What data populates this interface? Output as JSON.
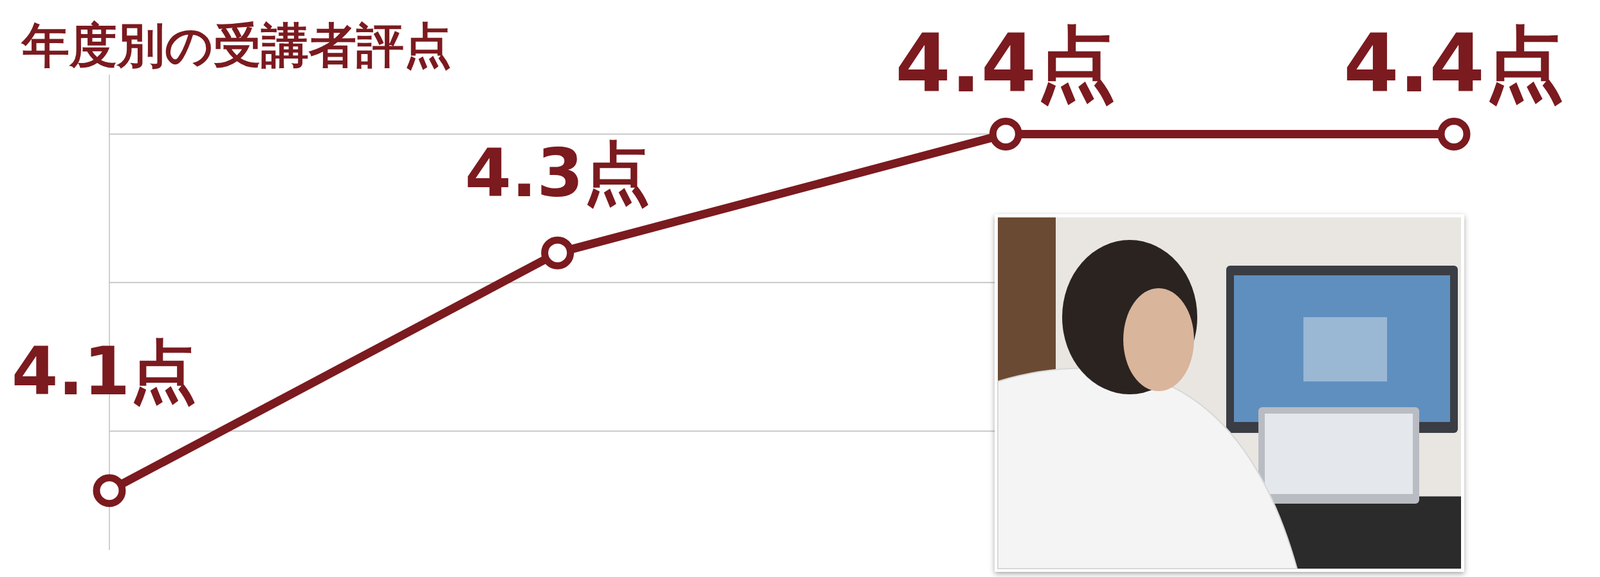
{
  "chart_data": {
    "type": "line",
    "title": "年度別の受講者評点",
    "categories": [
      null,
      null,
      null,
      null
    ],
    "values": [
      4.1,
      4.3,
      4.4,
      4.4
    ],
    "value_labels": [
      "4.1点",
      "4.3点",
      "4.4点",
      "4.4点"
    ],
    "color": "#7b1a1f",
    "ylim": [
      4.05,
      4.45
    ],
    "yticks": [
      4.15,
      4.275,
      4.4
    ],
    "grid": true,
    "data_labels": true,
    "tick_labels": false,
    "marker": "circle"
  }
}
